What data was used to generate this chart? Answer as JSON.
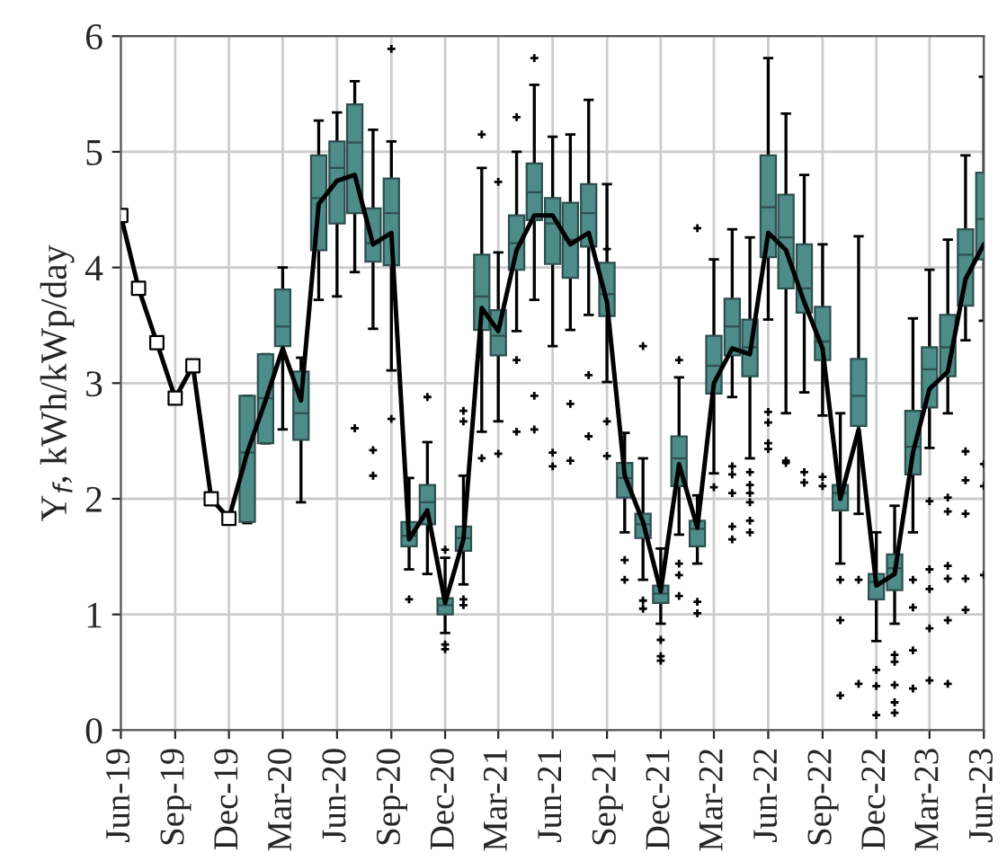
{
  "chart_data": {
    "type": "box",
    "ylabel": "Y$_{f}$, kWh/kWp/day",
    "xlim": [
      "2019-06",
      "2023-06"
    ],
    "xticks": [
      {
        "value": "2019-06",
        "label": "Jun-19"
      },
      {
        "value": "2019-09",
        "label": "Sep-19"
      },
      {
        "value": "2019-12",
        "label": "Dec-19"
      },
      {
        "value": "2020-03",
        "label": "Mar-20"
      },
      {
        "value": "2020-06",
        "label": "Jun-20"
      },
      {
        "value": "2020-09",
        "label": "Sep-20"
      },
      {
        "value": "2020-12",
        "label": "Dec-20"
      },
      {
        "value": "2021-03",
        "label": "Mar-21"
      },
      {
        "value": "2021-06",
        "label": "Jun-21"
      },
      {
        "value": "2021-09",
        "label": "Sep-21"
      },
      {
        "value": "2021-12",
        "label": "Dec-21"
      },
      {
        "value": "2022-03",
        "label": "Mar-22"
      },
      {
        "value": "2022-06",
        "label": "Jun-22"
      },
      {
        "value": "2022-09",
        "label": "Sep-22"
      },
      {
        "value": "2022-12",
        "label": "Dec-22"
      },
      {
        "value": "2023-03",
        "label": "Mar-23"
      },
      {
        "value": "2023-06",
        "label": "Jun-23"
      }
    ],
    "ylim": [
      0,
      6
    ],
    "yticks": [
      0,
      1,
      2,
      3,
      4,
      5,
      6
    ],
    "grid": true,
    "legend": false,
    "series": [
      {
        "color": "#4e8c8a",
        "x": [
          "2020-01",
          "2020-02",
          "2020-03",
          "2020-04",
          "2020-05",
          "2020-06",
          "2020-07",
          "2020-08",
          "2020-09",
          "2020-10",
          "2020-11",
          "2020-12",
          "2021-01",
          "2021-02",
          "2021-03",
          "2021-04",
          "2021-05",
          "2021-06",
          "2021-07",
          "2021-08",
          "2021-09",
          "2021-10",
          "2021-11",
          "2021-12",
          "2022-01",
          "2022-02",
          "2022-03",
          "2022-04",
          "2022-05",
          "2022-06",
          "2022-07",
          "2022-08",
          "2022-09",
          "2022-10",
          "2022-11",
          "2022-12",
          "2023-01",
          "2023-02",
          "2023-03",
          "2023-04",
          "2023-05",
          "2023-06"
        ],
        "boxes": [
          {
            "low": 1.79,
            "q1": 1.8,
            "median": 2.4,
            "q3": 2.89,
            "high": 2.89
          },
          {
            "low": 2.48,
            "q1": 2.48,
            "median": 2.87,
            "q3": 3.25,
            "high": 3.25
          },
          {
            "low": 2.6,
            "q1": 3.32,
            "median": 3.49,
            "q3": 3.81,
            "high": 4.0
          },
          {
            "low": 1.97,
            "q1": 2.51,
            "median": 2.74,
            "q3": 3.1,
            "high": 3.22
          },
          {
            "low": 3.72,
            "q1": 4.15,
            "median": 4.6,
            "q3": 4.97,
            "high": 5.27
          },
          {
            "low": 3.75,
            "q1": 4.38,
            "median": 4.86,
            "q3": 5.09,
            "high": 5.34
          },
          {
            "low": 3.96,
            "q1": 4.47,
            "median": 5.08,
            "q3": 5.41,
            "high": 5.61,
            "outliers": [
              2.61
            ]
          },
          {
            "low": 3.47,
            "q1": 4.05,
            "median": 4.21,
            "q3": 4.51,
            "high": 5.19,
            "outliers": [
              2.42,
              2.2
            ]
          },
          {
            "low": 3.11,
            "q1": 4.02,
            "median": 4.47,
            "q3": 4.77,
            "high": 5.09,
            "outliers": [
              5.89,
              2.69
            ]
          },
          {
            "low": 1.39,
            "q1": 1.59,
            "median": 1.68,
            "q3": 1.8,
            "high": 2.18,
            "outliers": [
              1.13
            ]
          },
          {
            "low": 1.35,
            "q1": 1.78,
            "median": 1.97,
            "q3": 2.12,
            "high": 2.49,
            "outliers": [
              2.88
            ]
          },
          {
            "low": 0.84,
            "q1": 1.0,
            "median": 1.08,
            "q3": 1.14,
            "high": 1.49,
            "outliers": [
              1.56,
              0.74,
              0.7
            ]
          },
          {
            "low": 1.26,
            "q1": 1.55,
            "median": 1.66,
            "q3": 1.76,
            "high": 2.2,
            "outliers": [
              2.76,
              2.67,
              1.13,
              1.08
            ]
          },
          {
            "low": 2.58,
            "q1": 3.46,
            "median": 3.75,
            "q3": 4.11,
            "high": 4.86,
            "outliers": [
              5.15,
              2.35
            ]
          },
          {
            "low": 2.67,
            "q1": 3.24,
            "median": 3.41,
            "q3": 3.63,
            "high": 4.13,
            "outliers": [
              4.74,
              2.39
            ]
          },
          {
            "low": 3.45,
            "q1": 3.98,
            "median": 4.21,
            "q3": 4.45,
            "high": 5.0,
            "outliers": [
              5.3,
              3.2,
              2.58
            ]
          },
          {
            "low": 3.72,
            "q1": 4.41,
            "median": 4.65,
            "q3": 4.9,
            "high": 5.58,
            "outliers": [
              5.81,
              2.89,
              2.6
            ]
          },
          {
            "low": 3.32,
            "q1": 4.03,
            "median": 4.38,
            "q3": 4.6,
            "high": 5.13,
            "outliers": [
              2.4,
              2.28
            ]
          },
          {
            "low": 3.46,
            "q1": 3.91,
            "median": 4.24,
            "q3": 4.56,
            "high": 5.15,
            "outliers": [
              2.82,
              2.33
            ]
          },
          {
            "low": 3.59,
            "q1": 4.18,
            "median": 4.47,
            "q3": 4.72,
            "high": 5.45,
            "outliers": [
              3.07,
              2.54
            ]
          },
          {
            "low": 3.01,
            "q1": 3.58,
            "median": 3.77,
            "q3": 4.04,
            "high": 4.72,
            "outliers": [
              4.16,
              2.67,
              2.37
            ]
          },
          {
            "low": 1.71,
            "q1": 2.01,
            "median": 2.18,
            "q3": 2.31,
            "high": 2.57,
            "outliers": [
              1.47,
              1.3
            ]
          },
          {
            "low": 1.3,
            "q1": 1.66,
            "median": 1.78,
            "q3": 1.87,
            "high": 2.35,
            "outliers": [
              3.32,
              1.12,
              1.05
            ]
          },
          {
            "low": 0.92,
            "q1": 1.1,
            "median": 1.18,
            "q3": 1.25,
            "high": 1.57,
            "outliers": [
              0.78,
              0.64,
              0.6
            ]
          },
          {
            "low": 1.69,
            "q1": 2.11,
            "median": 2.35,
            "q3": 2.54,
            "high": 3.05,
            "outliers": [
              3.2,
              1.44,
              1.34,
              1.16
            ]
          },
          {
            "low": 1.44,
            "q1": 1.59,
            "median": 1.74,
            "q3": 1.81,
            "high": 2.03,
            "outliers": [
              4.34,
              1.11,
              1.01
            ]
          },
          {
            "low": 2.22,
            "q1": 2.91,
            "median": 3.15,
            "q3": 3.41,
            "high": 4.07,
            "outliers": [
              2.1
            ]
          },
          {
            "low": 2.88,
            "q1": 3.24,
            "median": 3.49,
            "q3": 3.73,
            "high": 4.33,
            "outliers": [
              2.28,
              2.21,
              2.05,
              1.76,
              1.65
            ]
          },
          {
            "low": 2.35,
            "q1": 3.06,
            "median": 3.31,
            "q3": 3.55,
            "high": 4.26,
            "outliers": [
              2.23,
              2.12,
              2.05,
              1.97,
              1.81,
              1.71
            ]
          },
          {
            "low": 3.55,
            "q1": 4.09,
            "median": 4.52,
            "q3": 4.97,
            "high": 5.81,
            "outliers": [
              2.75,
              2.66,
              2.48,
              2.43
            ]
          },
          {
            "low": 2.74,
            "q1": 3.82,
            "median": 4.26,
            "q3": 4.63,
            "high": 5.33,
            "outliers": [
              2.33,
              2.31
            ]
          },
          {
            "low": 2.92,
            "q1": 3.61,
            "median": 3.82,
            "q3": 4.2,
            "high": 4.8,
            "outliers": [
              2.23,
              2.14
            ]
          },
          {
            "low": 2.72,
            "q1": 3.2,
            "median": 3.36,
            "q3": 3.66,
            "high": 4.2,
            "outliers": [
              2.19,
              2.11
            ]
          },
          {
            "low": 1.44,
            "q1": 1.9,
            "median": 2.05,
            "q3": 2.12,
            "high": 2.74,
            "outliers": [
              1.3,
              0.95,
              0.3
            ]
          },
          {
            "low": 1.87,
            "q1": 2.63,
            "median": 2.89,
            "q3": 3.21,
            "high": 4.27,
            "outliers": [
              1.3,
              0.4
            ]
          },
          {
            "low": 0.77,
            "q1": 1.13,
            "median": 1.28,
            "q3": 1.35,
            "high": 1.71,
            "outliers": [
              0.52,
              0.38,
              0.13
            ]
          },
          {
            "low": 0.92,
            "q1": 1.21,
            "median": 1.4,
            "q3": 1.52,
            "high": 1.94,
            "outliers": [
              0.65,
              0.59,
              0.39,
              0.24,
              0.15
            ]
          },
          {
            "low": 1.71,
            "q1": 2.21,
            "median": 2.45,
            "q3": 2.76,
            "high": 3.56,
            "outliers": [
              1.3,
              1.06,
              0.69,
              0.36
            ]
          },
          {
            "low": 2.44,
            "q1": 2.79,
            "median": 3.12,
            "q3": 3.31,
            "high": 3.98,
            "outliers": [
              1.98,
              1.39,
              1.22,
              0.88,
              0.43
            ]
          },
          {
            "low": 2.74,
            "q1": 3.06,
            "median": 3.31,
            "q3": 3.59,
            "high": 4.24,
            "outliers": [
              2.01,
              1.89,
              1.42,
              1.31,
              0.95,
              0.4
            ]
          },
          {
            "low": 3.37,
            "q1": 3.67,
            "median": 4.11,
            "q3": 4.33,
            "high": 4.97,
            "outliers": [
              2.41,
              2.16,
              1.87,
              1.31,
              1.04
            ]
          },
          {
            "low": 3.54,
            "q1": 4.07,
            "median": 4.42,
            "q3": 4.82,
            "high": 5.65,
            "outliers": [
              2.3,
              2.11,
              1.34
            ]
          }
        ]
      },
      {
        "type": "line",
        "color": "#000000",
        "marker": "none",
        "line_style": "solid",
        "x": [
          "2019-06",
          "2019-07",
          "2019-08",
          "2019-09",
          "2019-10",
          "2019-11",
          "2019-12",
          "2020-01",
          "2020-02",
          "2020-03",
          "2020-04",
          "2020-05",
          "2020-06",
          "2020-07",
          "2020-08",
          "2020-09",
          "2020-10",
          "2020-11",
          "2020-12",
          "2021-01",
          "2021-02",
          "2021-03",
          "2021-04",
          "2021-05",
          "2021-06",
          "2021-07",
          "2021-08",
          "2021-09",
          "2021-10",
          "2021-11",
          "2021-12",
          "2022-01",
          "2022-02",
          "2022-03",
          "2022-04",
          "2022-05",
          "2022-06",
          "2022-07",
          "2022-08",
          "2022-09",
          "2022-10",
          "2022-11",
          "2022-12",
          "2023-01",
          "2023-02",
          "2023-03",
          "2023-04",
          "2023-05",
          "2023-06"
        ],
        "values": [
          4.45,
          3.82,
          3.35,
          2.87,
          3.15,
          2.0,
          1.83,
          2.4,
          2.85,
          3.3,
          2.85,
          4.55,
          4.75,
          4.8,
          4.2,
          4.3,
          1.65,
          1.9,
          1.1,
          1.65,
          3.65,
          3.45,
          4.15,
          4.45,
          4.45,
          4.2,
          4.3,
          3.7,
          2.2,
          1.8,
          1.2,
          2.3,
          1.75,
          3.0,
          3.3,
          3.25,
          4.3,
          4.15,
          3.7,
          3.3,
          2.0,
          2.6,
          1.25,
          1.35,
          2.4,
          2.95,
          3.1,
          3.9,
          4.2
        ]
      },
      {
        "type": "scatter",
        "color": "#000000",
        "marker": "square",
        "x": [
          "2019-06",
          "2019-07",
          "2019-08",
          "2019-09",
          "2019-10",
          "2019-11",
          "2019-12"
        ],
        "values": [
          4.45,
          3.82,
          3.35,
          2.87,
          3.15,
          2.0,
          1.83
        ]
      }
    ]
  }
}
